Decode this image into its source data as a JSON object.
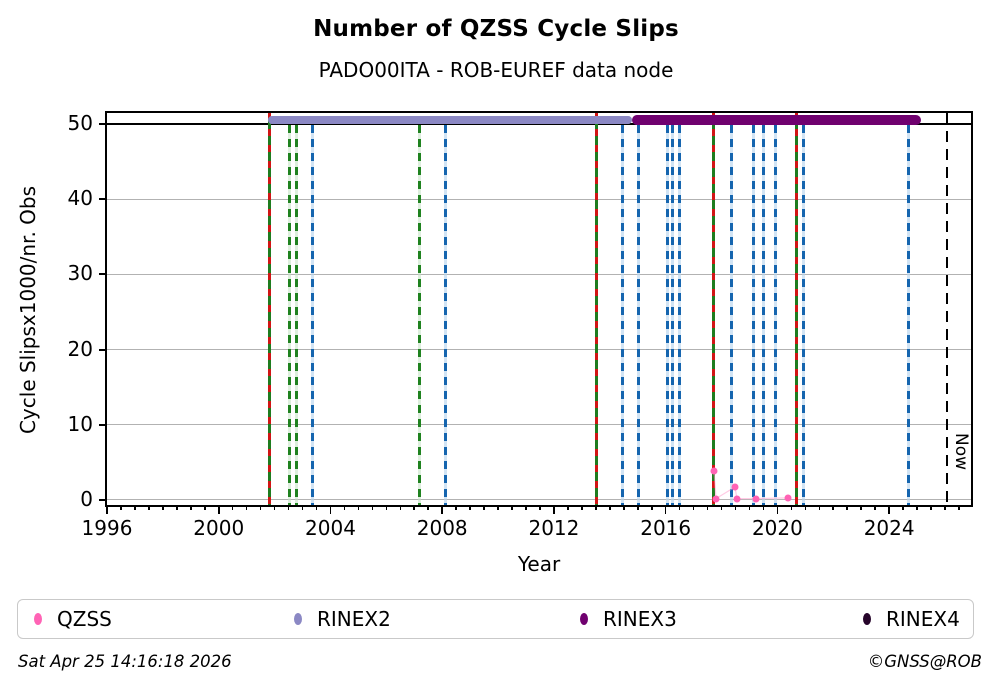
{
  "title": "Number of QZSS Cycle Slips",
  "subtitle": "PADO00ITA - ROB-EUREF data node",
  "footer": {
    "timestamp": "Sat Apr 25 14:16:18 2026",
    "credit": "©GNSS@ROB"
  },
  "colors": {
    "qzss_pink": "#ff63b5",
    "rinex2": "#8b88c4",
    "rinex3": "#70016f",
    "rinex4": "#26052a",
    "event_blue": "#1565af",
    "event_green": "#1f821f",
    "event_red": "#d11515",
    "grid_gray": "#b2b2b2",
    "threshold_black": "#000000"
  },
  "chart_data": {
    "type": "scatter",
    "title": "Number of QZSS Cycle Slips",
    "subtitle": "PADO00ITA - ROB-EUREF data node",
    "xlabel": "Year",
    "ylabel": "Cycle Slipsx1000/nr. Obs",
    "xlim": [
      1996,
      2026.93
    ],
    "ylim": [
      -0.7,
      51.5
    ],
    "grid": true,
    "x_major_ticks": [
      1996,
      2000,
      2004,
      2008,
      2012,
      2016,
      2020,
      2024
    ],
    "x_minor_step": 0.5,
    "y_ticks": [
      0,
      10,
      20,
      30,
      40,
      50
    ],
    "threshold_line_y": 50,
    "legend_position": "bottom",
    "legend": [
      {
        "label": "QZSS",
        "color": "#ff63b5"
      },
      {
        "label": "RINEX2",
        "color": "#8b88c4"
      },
      {
        "label": "RINEX3",
        "color": "#70016f"
      },
      {
        "label": "RINEX4",
        "color": "#26052a"
      }
    ],
    "availability_bars": [
      {
        "name": "RINEX2",
        "start": 2001.78,
        "end": 2014.78,
        "y_value": 51,
        "color": "#8b88c4"
      },
      {
        "name": "RINEX3",
        "start": 2014.78,
        "end": 2025.14,
        "y_value": 51,
        "color": "#70016f"
      }
    ],
    "event_lines": [
      {
        "year": 2001.8,
        "style": "green_red"
      },
      {
        "year": 2002.55,
        "style": "green"
      },
      {
        "year": 2002.8,
        "style": "green"
      },
      {
        "year": 2003.34,
        "style": "blue"
      },
      {
        "year": 2007.17,
        "style": "green"
      },
      {
        "year": 2008.1,
        "style": "blue"
      },
      {
        "year": 2013.54,
        "style": "green_red"
      },
      {
        "year": 2014.47,
        "style": "blue"
      },
      {
        "year": 2015.01,
        "style": "blue"
      },
      {
        "year": 2016.05,
        "style": "blue"
      },
      {
        "year": 2016.26,
        "style": "blue"
      },
      {
        "year": 2016.48,
        "style": "blue"
      },
      {
        "year": 2017.7,
        "style": "green_red"
      },
      {
        "year": 2018.34,
        "style": "blue"
      },
      {
        "year": 2019.16,
        "style": "blue"
      },
      {
        "year": 2019.49,
        "style": "blue"
      },
      {
        "year": 2019.92,
        "style": "blue"
      },
      {
        "year": 2020.67,
        "style": "green_red"
      },
      {
        "year": 2020.95,
        "style": "blue"
      },
      {
        "year": 2024.68,
        "style": "blue"
      }
    ],
    "series": [
      {
        "name": "QZSS",
        "marker_color": "#ff63b5",
        "points": [
          {
            "x": 2017.73,
            "y": 3.8
          },
          {
            "x": 2017.8,
            "y": 0.15
          },
          {
            "x": 2018.48,
            "y": 1.7
          },
          {
            "x": 2018.55,
            "y": 0.15
          },
          {
            "x": 2019.23,
            "y": 0.15
          },
          {
            "x": 2020.38,
            "y": 0.25
          }
        ]
      }
    ],
    "now_marker": {
      "year": 2026.07,
      "label": "Now"
    }
  }
}
